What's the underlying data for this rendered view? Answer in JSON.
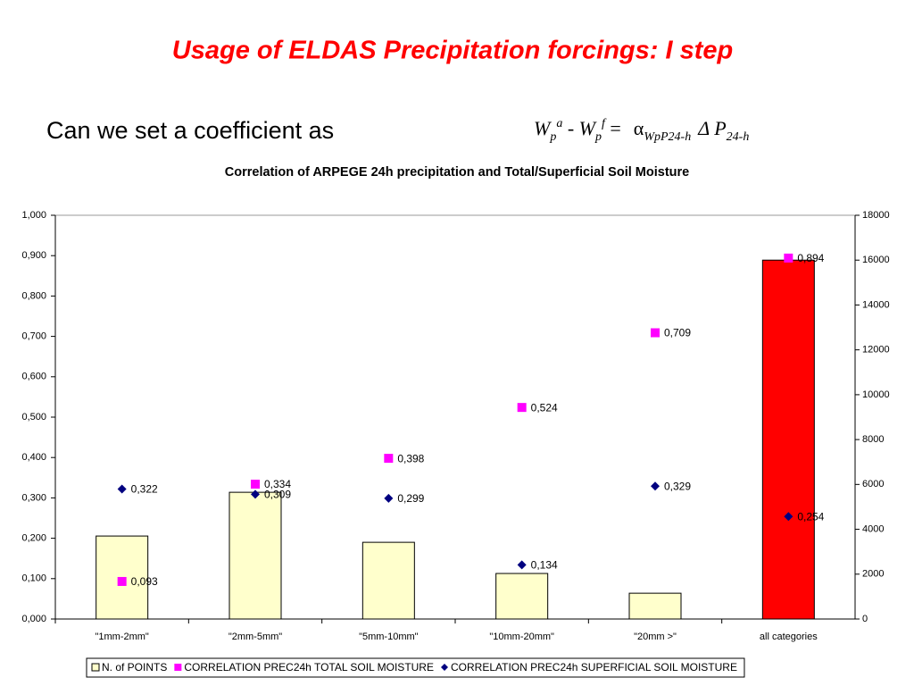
{
  "title": "Usage of ELDAS Precipitation forcings: I step",
  "question": "Can we set a coefficient as",
  "formula": [
    "W",
    "p",
    "a",
    " - W",
    "p",
    "f",
    " =",
    "α",
    "WpP24-h",
    "Δ P",
    "24-h"
  ],
  "chart_data": {
    "type": "bar",
    "title": "Correlation of ARPEGE 24h precipitation and Total/Superficial Soil Moisture",
    "categories": [
      "\"1mm-2mm\"",
      "\"2mm-5mm\"",
      "\"5mm-10mm\"",
      "\"10mm-20mm\"",
      "\"20mm >\"",
      "all categories"
    ],
    "ylim": [
      0,
      1
    ],
    "yticks": [
      {
        "value": 0,
        "label": "0,000"
      },
      {
        "value": 0.1,
        "label": "0,100"
      },
      {
        "value": 0.2,
        "label": "0,200"
      },
      {
        "value": 0.3,
        "label": "0,300"
      },
      {
        "value": 0.4,
        "label": "0,400"
      },
      {
        "value": 0.5,
        "label": "0,500"
      },
      {
        "value": 0.6,
        "label": "0,600"
      },
      {
        "value": 0.7,
        "label": "0,700"
      },
      {
        "value": 0.8,
        "label": "0,800"
      },
      {
        "value": 0.9,
        "label": "0,900"
      },
      {
        "value": 1,
        "label": "1,000"
      }
    ],
    "y2lim": [
      0,
      18000
    ],
    "y2ticks": [
      0,
      2000,
      4000,
      6000,
      8000,
      10000,
      12000,
      14000,
      16000,
      18000
    ],
    "grid": false,
    "legend": "bottom",
    "series": [
      {
        "name": "N. of POINTS",
        "type": "bar",
        "axis": "y2",
        "color": "#ffffcc",
        "colors": [
          "#ffffcc",
          "#ffffcc",
          "#ffffcc",
          "#ffffcc",
          "#ffffcc",
          "#ff0000"
        ],
        "values": [
          3700,
          5650,
          3420,
          2030,
          1150,
          16000
        ]
      },
      {
        "name": "CORRELATION PREC24h TOTAL SOIL MOISTURE",
        "type": "scatter",
        "marker": "square",
        "color": "#ff00ff",
        "values": [
          0.093,
          0.334,
          0.398,
          0.524,
          0.709,
          0.894
        ],
        "value_labels": [
          "0,093",
          "0,334",
          "0,398",
          "0,524",
          "0,709",
          "0,894"
        ]
      },
      {
        "name": "CORRELATION PREC24h SUPERFICIAL SOIL MOISTURE",
        "type": "scatter",
        "marker": "diamond",
        "color": "#000080",
        "values": [
          0.322,
          0.309,
          0.299,
          0.134,
          0.329,
          0.254
        ],
        "value_labels": [
          "0,322",
          "0,309",
          "0,299",
          "0,134",
          "0,329",
          "0,254"
        ]
      }
    ]
  }
}
